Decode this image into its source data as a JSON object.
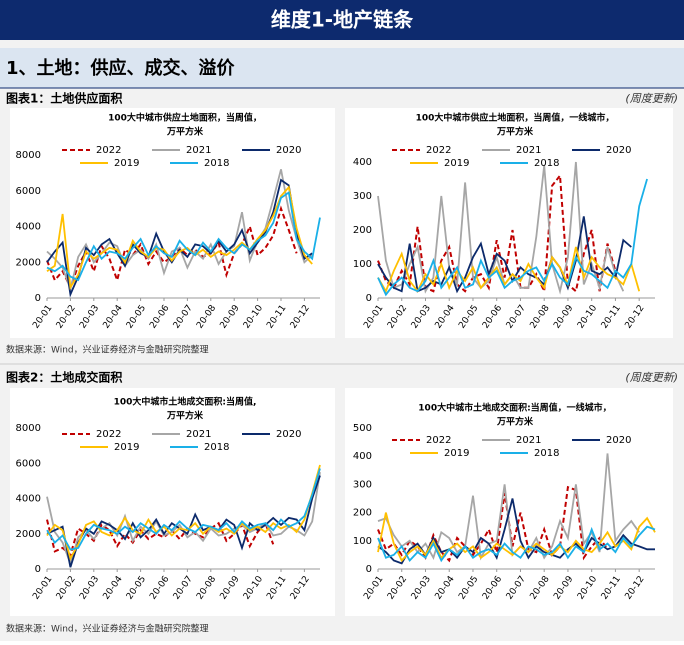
{
  "header": {
    "title": "维度1-地产链条"
  },
  "section": {
    "title": "1、土地：供应、成交、溢价"
  },
  "figures": [
    {
      "caption": "图表1：土地供应面积",
      "note": "(周度更新)",
      "source": "数据来源：Wind，兴业证券经济与金融研究院整理"
    },
    {
      "caption": "图表2：土地成交面积",
      "note": "(周度更新)",
      "source": "数据来源：Wind，兴业证券经济与金融研究院整理"
    }
  ],
  "chart_data": [
    {
      "type": "line",
      "title": [
        "100大中城市供应土地面积，当周值，",
        "万平方米"
      ],
      "categories": [
        "20-01",
        null,
        null,
        "20-02",
        null,
        null,
        "20-03",
        null,
        null,
        "20-04",
        null,
        null,
        "20-05",
        null,
        null,
        "20-06",
        null,
        null,
        "20-07",
        null,
        null,
        "20-08",
        null,
        null,
        "20-09",
        null,
        null,
        "20-10",
        null,
        null,
        "20-11",
        null,
        null,
        "20-12",
        null,
        null
      ],
      "ylim": [
        0,
        8000
      ],
      "yticks": [
        0,
        2000,
        4000,
        6000,
        8000
      ],
      "grid": false,
      "series": [
        {
          "name": "2022",
          "color": "#c00000",
          "line_style": "dashed",
          "values": [
            2100,
            1000,
            1500,
            600,
            1800,
            2600,
            1500,
            2900,
            2200,
            1000,
            2700,
            2400,
            3000,
            1900,
            2600,
            2000,
            2300,
            2800,
            2400,
            2700,
            2300,
            2500,
            3100,
            1300,
            2500,
            3000,
            4000,
            2400,
            2800,
            3500,
            5000,
            3800,
            2500,
            null,
            null,
            null
          ]
        },
        {
          "name": "2021",
          "color": "#a6a6a6",
          "line_style": "solid",
          "values": [
            2600,
            2200,
            1700,
            500,
            2300,
            3000,
            2000,
            2500,
            3100,
            2900,
            1800,
            2400,
            2700,
            2200,
            3000,
            1400,
            2600,
            2800,
            1700,
            2600,
            2200,
            3000,
            1900,
            2600,
            2900,
            4800,
            2100,
            3200,
            3900,
            5500,
            7200,
            4900,
            3300,
            2000,
            2400,
            null
          ]
        },
        {
          "name": "2020",
          "color": "#0c2a6b",
          "line_style": "solid",
          "values": [
            2000,
            2600,
            3100,
            200,
            1200,
            2800,
            2400,
            3000,
            3300,
            2500,
            1800,
            3000,
            2500,
            2300,
            3600,
            2600,
            2000,
            2700,
            2300,
            3000,
            2900,
            2500,
            3200,
            2600,
            3000,
            3800,
            2500,
            3100,
            3700,
            4800,
            6600,
            6300,
            3600,
            2200,
            2500,
            null
          ]
        },
        {
          "name": "2019",
          "color": "#ffc000",
          "line_style": "solid",
          "values": [
            1500,
            1800,
            4700,
            600,
            1300,
            2600,
            2200,
            2500,
            2800,
            2700,
            2000,
            3200,
            2600,
            2300,
            2800,
            2700,
            2100,
            2600,
            2800,
            2400,
            2700,
            2300,
            2600,
            2400,
            2700,
            3100,
            2700,
            3300,
            3800,
            4600,
            5700,
            6200,
            3900,
            2400,
            1900,
            null
          ]
        },
        {
          "name": "2018",
          "color": "#1ab0e8",
          "line_style": "solid",
          "values": [
            1700,
            1500,
            1800,
            1200,
            1000,
            2000,
            2900,
            2200,
            2600,
            2500,
            2200,
            2800,
            3300,
            2400,
            2900,
            2500,
            2300,
            3200,
            2700,
            2400,
            3100,
            2600,
            3300,
            2800,
            2500,
            3000,
            2700,
            3200,
            3500,
            4200,
            5600,
            5900,
            3300,
            2600,
            2200,
            4500
          ]
        }
      ]
    },
    {
      "type": "line",
      "title": [
        "100大中城市供应土地面积，当周值，一线城市，",
        "万平方米"
      ],
      "categories": [
        "20-01",
        null,
        null,
        "20-02",
        null,
        null,
        "20-03",
        null,
        null,
        "20-04",
        null,
        null,
        "20-05",
        null,
        null,
        "20-06",
        null,
        null,
        "20-07",
        null,
        null,
        "20-08",
        null,
        null,
        "20-09",
        null,
        null,
        "20-10",
        null,
        null,
        "20-11",
        null,
        null,
        "20-12",
        null,
        null
      ],
      "ylim": [
        0,
        400
      ],
      "yticks": [
        0,
        100,
        200,
        300,
        400
      ],
      "grid": false,
      "series": [
        {
          "name": "2022",
          "color": "#c00000",
          "line_style": "dashed",
          "values": [
            110,
            50,
            30,
            80,
            40,
            210,
            30,
            20,
            110,
            150,
            40,
            20,
            60,
            70,
            30,
            170,
            60,
            200,
            30,
            30,
            70,
            20,
            330,
            360,
            40,
            20,
            130,
            200,
            20,
            160,
            80,
            null,
            null,
            null,
            null,
            null
          ]
        },
        {
          "name": "2021",
          "color": "#a6a6a6",
          "line_style": "solid",
          "values": [
            300,
            110,
            30,
            40,
            100,
            150,
            20,
            60,
            300,
            90,
            40,
            340,
            60,
            30,
            50,
            120,
            40,
            70,
            30,
            30,
            180,
            390,
            100,
            20,
            120,
            400,
            40,
            100,
            30,
            150,
            70,
            20,
            null,
            null,
            null,
            null
          ]
        },
        {
          "name": "2020",
          "color": "#0c2a6b",
          "line_style": "solid",
          "values": [
            100,
            60,
            30,
            20,
            160,
            20,
            30,
            50,
            40,
            90,
            20,
            60,
            120,
            160,
            70,
            130,
            110,
            50,
            90,
            70,
            60,
            40,
            120,
            90,
            30,
            110,
            240,
            80,
            70,
            90,
            60,
            170,
            150,
            null,
            null,
            null
          ]
        },
        {
          "name": "2019",
          "color": "#ffc000",
          "line_style": "solid",
          "values": [
            60,
            20,
            80,
            130,
            50,
            20,
            70,
            40,
            100,
            30,
            80,
            50,
            90,
            30,
            60,
            90,
            40,
            70,
            50,
            100,
            60,
            30,
            120,
            90,
            40,
            150,
            60,
            120,
            90,
            70,
            60,
            40,
            100,
            20,
            null,
            null
          ]
        },
        {
          "name": "2018",
          "color": "#1ab0e8",
          "line_style": "solid",
          "values": [
            60,
            10,
            40,
            60,
            30,
            20,
            50,
            110,
            30,
            60,
            90,
            30,
            40,
            110,
            60,
            80,
            30,
            50,
            60,
            80,
            90,
            50,
            100,
            60,
            40,
            120,
            80,
            70,
            50,
            30,
            80,
            60,
            100,
            270,
            350,
            null
          ]
        }
      ]
    },
    {
      "type": "line",
      "title": [
        "100大中城市土地成交面积:当周值,",
        "万平方米"
      ],
      "categories": [
        "20-01",
        null,
        null,
        "20-02",
        null,
        null,
        "20-03",
        null,
        null,
        "20-04",
        null,
        null,
        "20-05",
        null,
        null,
        "20-06",
        null,
        null,
        "20-07",
        null,
        null,
        "20-08",
        null,
        null,
        "20-09",
        null,
        null,
        "20-10",
        null,
        null,
        "20-11",
        null,
        null,
        "20-12",
        null,
        null
      ],
      "ylim": [
        0,
        8000
      ],
      "yticks": [
        0,
        2000,
        4000,
        6000,
        8000
      ],
      "grid": false,
      "series": [
        {
          "name": "2022",
          "color": "#c00000",
          "line_style": "dashed",
          "values": [
            2800,
            1000,
            1200,
            800,
            2300,
            2000,
            1600,
            2500,
            2200,
            1300,
            2000,
            1500,
            2200,
            1700,
            2000,
            1800,
            2200,
            1700,
            2300,
            2000,
            1800,
            2300,
            2600,
            1600,
            2000,
            2500,
            1300,
            2100,
            2600,
            1400,
            null,
            null,
            null,
            null,
            null,
            null
          ]
        },
        {
          "name": "2021",
          "color": "#a6a6a6",
          "line_style": "solid",
          "values": [
            4100,
            2100,
            1500,
            300,
            1800,
            2200,
            1700,
            2300,
            2600,
            1900,
            3000,
            1600,
            2400,
            2000,
            2700,
            1900,
            2100,
            2500,
            1800,
            2100,
            1600,
            2300,
            1900,
            2000,
            2300,
            2500,
            2100,
            2300,
            2600,
            1900,
            2000,
            2400,
            2200,
            1900,
            2700,
            5500
          ]
        },
        {
          "name": "2020",
          "color": "#0c2a6b",
          "line_style": "solid",
          "values": [
            2000,
            2200,
            2400,
            100,
            1500,
            2300,
            2000,
            2700,
            2500,
            2200,
            1700,
            2600,
            1800,
            2200,
            2800,
            2000,
            2600,
            2300,
            2000,
            3100,
            2200,
            2400,
            2200,
            2800,
            2500,
            1200,
            2600,
            2200,
            2500,
            2900,
            2500,
            2900,
            2800,
            2200,
            4000,
            5300
          ]
        },
        {
          "name": "2019",
          "color": "#ffc000",
          "line_style": "solid",
          "values": [
            1900,
            2500,
            2200,
            600,
            1400,
            2500,
            2700,
            2100,
            1900,
            2200,
            2900,
            2200,
            2000,
            2800,
            2100,
            2400,
            1900,
            2300,
            2200,
            2600,
            2000,
            2400,
            2100,
            2300,
            2000,
            2600,
            2200,
            2400,
            2100,
            2600,
            2300,
            2500,
            2100,
            2800,
            4300,
            5900
          ]
        },
        {
          "name": "2018",
          "color": "#1ab0e8",
          "line_style": "solid",
          "values": [
            2200,
            1500,
            1900,
            1100,
            1200,
            2000,
            2500,
            2300,
            2200,
            2000,
            2400,
            2100,
            2600,
            2300,
            2000,
            2500,
            2200,
            2700,
            2300,
            2100,
            2500,
            2400,
            2200,
            2600,
            2100,
            2700,
            2300,
            2500,
            2600,
            2200,
            2800,
            2400,
            2600,
            3000,
            4200,
            5700
          ]
        }
      ]
    },
    {
      "type": "line",
      "title": [
        "100大中城市土地成交面积:当周值，一线城市，",
        "万平方米"
      ],
      "categories": [
        "20-01",
        null,
        null,
        "20-02",
        null,
        null,
        "20-03",
        null,
        null,
        "20-04",
        null,
        null,
        "20-05",
        null,
        null,
        "20-06",
        null,
        null,
        "20-07",
        null,
        null,
        "20-08",
        null,
        null,
        "20-09",
        null,
        null,
        "20-10",
        null,
        null,
        "20-11",
        null,
        null,
        "20-12",
        null,
        null
      ],
      "ylim": [
        0,
        500
      ],
      "yticks": [
        0,
        100,
        200,
        300,
        400,
        500
      ],
      "grid": false,
      "series": [
        {
          "name": "2022",
          "color": "#c00000",
          "line_style": "dashed",
          "values": [
            140,
            70,
            90,
            50,
            100,
            80,
            40,
            120,
            60,
            30,
            110,
            80,
            50,
            90,
            140,
            60,
            270,
            80,
            200,
            70,
            60,
            140,
            50,
            80,
            290,
            280,
            40,
            80,
            110,
            70,
            null,
            null,
            null,
            null,
            null,
            null
          ]
        },
        {
          "name": "2021",
          "color": "#a6a6a6",
          "line_style": "solid",
          "values": [
            170,
            180,
            120,
            80,
            100,
            60,
            90,
            40,
            130,
            110,
            60,
            80,
            260,
            40,
            90,
            100,
            300,
            50,
            80,
            60,
            110,
            40,
            80,
            170,
            110,
            300,
            90,
            130,
            60,
            410,
            100,
            140,
            170,
            130,
            null,
            null
          ]
        },
        {
          "name": "2020",
          "color": "#0c2a6b",
          "line_style": "solid",
          "values": [
            80,
            60,
            30,
            20,
            70,
            90,
            50,
            110,
            60,
            70,
            40,
            80,
            60,
            110,
            90,
            40,
            140,
            250,
            100,
            40,
            80,
            60,
            50,
            40,
            70,
            90,
            60,
            110,
            90,
            70,
            80,
            120,
            90,
            80,
            70,
            70
          ]
        },
        {
          "name": "2019",
          "color": "#ffc000",
          "line_style": "solid",
          "values": [
            60,
            200,
            90,
            30,
            60,
            80,
            50,
            100,
            40,
            70,
            90,
            60,
            80,
            40,
            60,
            90,
            70,
            50,
            80,
            60,
            90,
            70,
            50,
            80,
            60,
            100,
            70,
            60,
            90,
            130,
            80,
            100,
            70,
            150,
            180,
            130
          ]
        },
        {
          "name": "2018",
          "color": "#1ab0e8",
          "line_style": "solid",
          "values": [
            110,
            40,
            50,
            80,
            30,
            60,
            40,
            90,
            30,
            70,
            50,
            80,
            40,
            60,
            70,
            50,
            90,
            60,
            40,
            80,
            70,
            50,
            60,
            90,
            40,
            80,
            60,
            140,
            70,
            90,
            60,
            110,
            80,
            120,
            150,
            140
          ]
        }
      ]
    }
  ]
}
